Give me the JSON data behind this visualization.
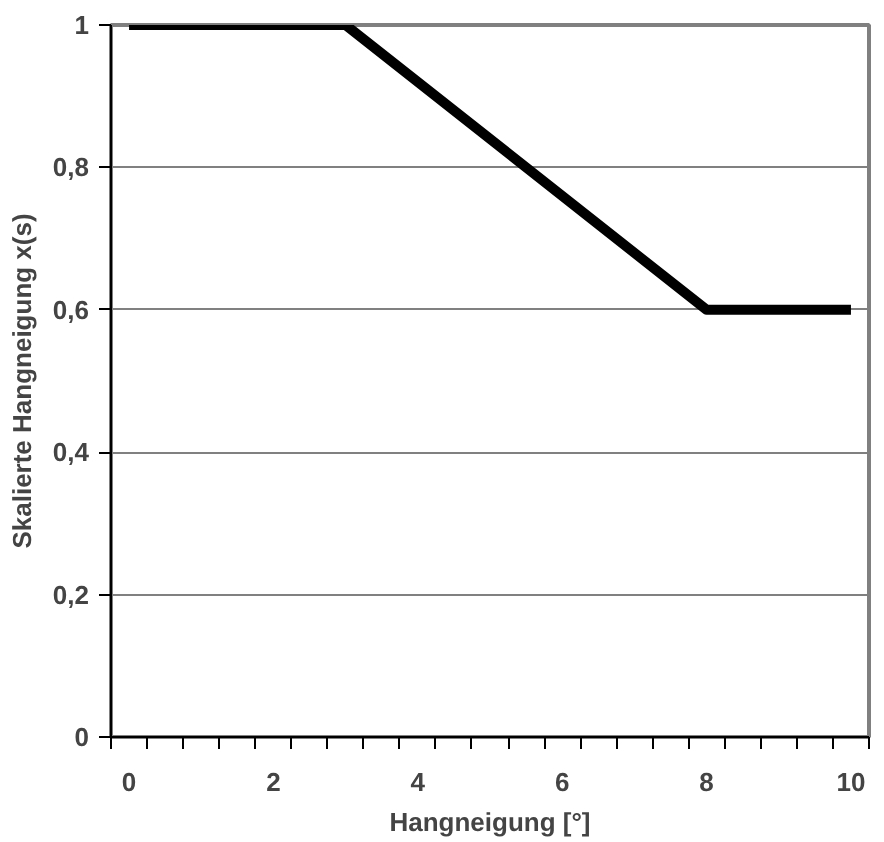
{
  "chart_data": {
    "type": "line",
    "xlabel": "Hangneigung [°]",
    "ylabel": "Skalierte Hangneigung x(s)",
    "x": [
      0,
      3,
      8,
      10
    ],
    "series": [
      {
        "color": "#000000",
        "values": [
          1,
          1,
          0.6,
          0.6
        ]
      }
    ],
    "xlim": [
      -0.25,
      10.25
    ],
    "xticks": [
      0,
      2,
      4,
      6,
      8,
      10,
      {
        "value": -0.25,
        "label": null
      },
      {
        "value": 0.25,
        "label": null
      },
      {
        "value": 0.75,
        "label": null
      },
      {
        "value": 1.25,
        "label": null
      },
      {
        "value": 1.75,
        "label": null
      },
      {
        "value": 2.25,
        "label": null
      },
      {
        "value": 2.75,
        "label": null
      },
      {
        "value": 3.25,
        "label": null
      },
      {
        "value": 3.75,
        "label": null
      },
      {
        "value": 4.25,
        "label": null
      },
      {
        "value": 4.75,
        "label": null
      },
      {
        "value": 5.25,
        "label": null
      },
      {
        "value": 5.75,
        "label": null
      },
      {
        "value": 6.25,
        "label": null
      },
      {
        "value": 6.75,
        "label": null
      },
      {
        "value": 7.25,
        "label": null
      },
      {
        "value": 7.75,
        "label": null
      },
      {
        "value": 8.25,
        "label": null
      },
      {
        "value": 8.75,
        "label": null
      },
      {
        "value": 9.25,
        "label": null
      },
      {
        "value": 9.75,
        "label": null
      },
      {
        "value": 10.25,
        "label": null
      }
    ],
    "ylim": [
      0,
      1
    ],
    "yticks": [
      0,
      {
        "value": 0.2,
        "label": "0,2"
      },
      {
        "value": 0.4,
        "label": "0,4"
      },
      {
        "value": 0.6,
        "label": "0,6"
      },
      {
        "value": 0.8,
        "label": "0,8"
      },
      1
    ],
    "grid": "y",
    "marker": "none",
    "line_style": "solid"
  }
}
